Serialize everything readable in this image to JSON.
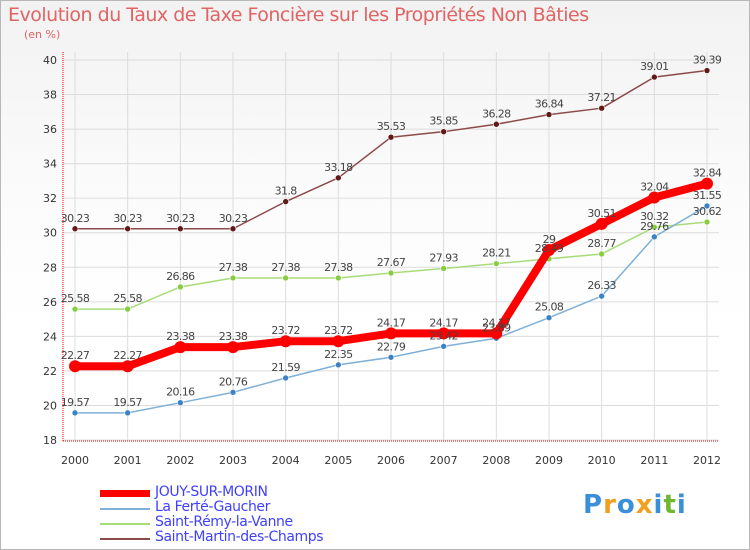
{
  "header": {
    "title": "Evolution du Taux de Taxe Foncière sur les Propriétés Non Bâties",
    "subtitle": "(en %)"
  },
  "logo": {
    "text": "Proxiti",
    "letters": [
      "P",
      "r",
      "o",
      "x",
      "i",
      "t",
      "i"
    ],
    "colors": [
      "#3a8fd8",
      "#f0a020",
      "#3a8fd8",
      "#f0a020",
      "#3a8fd8",
      "#70b830",
      "#3a8fd8"
    ]
  },
  "chart_data": {
    "type": "line",
    "title": "Evolution du Taux de Taxe Foncière sur les Propriétés Non Bâties",
    "subtitle": "(en %)",
    "x": [
      2000,
      2001,
      2002,
      2003,
      2004,
      2005,
      2006,
      2007,
      2008,
      2009,
      2010,
      2011,
      2012
    ],
    "ylim": [
      18,
      40
    ],
    "yticks": [
      18,
      20,
      22,
      24,
      26,
      28,
      30,
      32,
      34,
      36,
      38,
      40
    ],
    "grid": true,
    "legend": "bottom-left",
    "series": [
      {
        "name": "JOUY-SUR-MORIN",
        "color": "#ff0000",
        "width": 8,
        "marker": "#ff0000",
        "values": [
          22.27,
          22.27,
          23.38,
          23.38,
          23.72,
          23.72,
          24.17,
          24.17,
          24.17,
          29,
          30.51,
          32.04,
          32.84
        ],
        "labels": [
          "22.27",
          "22.27",
          "23.38",
          "23.38",
          "23.72",
          "23.72",
          "24.17",
          "24.17",
          "24.17",
          "29",
          "30.51",
          "32.04",
          "32.84"
        ]
      },
      {
        "name": "La Ferté-Gaucher",
        "color": "#7fb0d8",
        "width": 1.5,
        "marker": "#3c82c4",
        "values": [
          19.57,
          19.57,
          20.16,
          20.76,
          21.59,
          22.35,
          22.79,
          23.42,
          23.89,
          25.08,
          26.33,
          29.76,
          31.55
        ],
        "labels": [
          "19.57",
          "19.57",
          "20.16",
          "20.76",
          "21.59",
          "22.35",
          "22.79",
          "23.42",
          "23.89",
          "25.08",
          "26.33",
          "29.76",
          "31.55"
        ]
      },
      {
        "name": "Saint-Rémy-la-Vanne",
        "color": "#a8dc78",
        "width": 1.5,
        "marker": "#88cc44",
        "values": [
          25.58,
          25.58,
          26.86,
          27.38,
          27.38,
          27.38,
          27.67,
          27.93,
          28.21,
          28.49,
          28.77,
          30.32,
          30.62
        ],
        "labels": [
          "25.58",
          "25.58",
          "26.86",
          "27.38",
          "27.38",
          "27.38",
          "27.67",
          "27.93",
          "28.21",
          "28.49",
          "28.77",
          "30.32",
          "30.62"
        ]
      },
      {
        "name": "Saint-Martin-des-Champs",
        "color": "#8c4a4a",
        "width": 1.5,
        "marker": "#601818",
        "values": [
          30.23,
          30.23,
          30.23,
          30.23,
          31.8,
          33.18,
          35.53,
          35.85,
          36.28,
          36.84,
          37.21,
          39.01,
          39.39
        ],
        "labels": [
          "30.23",
          "30.23",
          "30.23",
          "30.23",
          "31.8",
          "33.18",
          "35.53",
          "35.85",
          "36.28",
          "36.84",
          "37.21",
          "39.01",
          "39.39"
        ]
      }
    ]
  }
}
